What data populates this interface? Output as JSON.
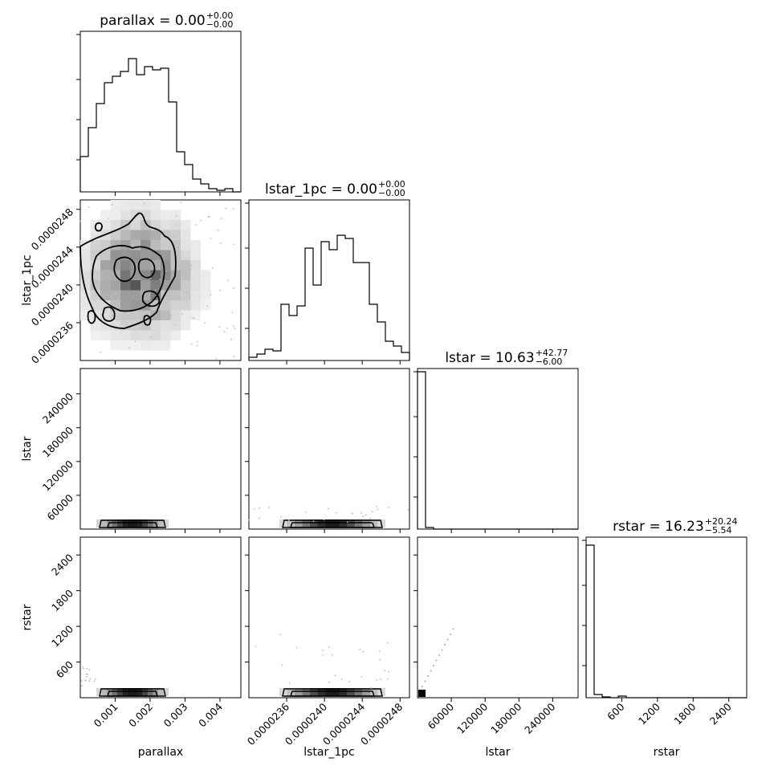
{
  "chart_data": {
    "type": "corner",
    "parameters": [
      "parallax",
      "lstar_1pc",
      "lstar",
      "rstar"
    ],
    "titles": [
      {
        "param": "parallax",
        "label": "parallax = 0.00",
        "plus": "+0.00",
        "minus": "−0.00"
      },
      {
        "param": "lstar_1pc",
        "label": "lstar_1pc = 0.00",
        "plus": "+0.00",
        "minus": "−0.00"
      },
      {
        "param": "lstar",
        "label": "lstar = 10.63",
        "plus": "+42.77",
        "minus": "−6.00"
      },
      {
        "param": "rstar",
        "label": "rstar = 16.23",
        "plus": "+20.24",
        "minus": "−5.54"
      }
    ],
    "axes": {
      "parallax": {
        "range": [
          0.0,
          0.0046
        ],
        "ticks": [
          0.001,
          0.002,
          0.003,
          0.004
        ],
        "tick_labels": [
          "0.001",
          "0.002",
          "0.003",
          "0.004"
        ]
      },
      "lstar_1pc": {
        "range": [
          2.32e-05,
          2.49e-05
        ],
        "ticks": [
          2.36e-05,
          2.4e-05,
          2.44e-05,
          2.48e-05
        ],
        "tick_labels": [
          "0.0000236",
          "0.0000240",
          "0.0000244",
          "0.0000248"
        ]
      },
      "lstar": {
        "range": [
          0,
          285000
        ],
        "ticks": [
          60000,
          120000,
          180000,
          240000
        ],
        "tick_labels": [
          "60000",
          "120000",
          "180000",
          "240000"
        ]
      },
      "rstar": {
        "range": [
          0,
          2700
        ],
        "ticks": [
          600,
          1200,
          1800,
          2400
        ],
        "tick_labels": [
          "600",
          "1200",
          "1800",
          "2400"
        ]
      }
    },
    "histograms": {
      "parallax": [
        0.22,
        0.4,
        0.55,
        0.68,
        0.72,
        0.75,
        0.83,
        0.73,
        0.78,
        0.76,
        0.77,
        0.56,
        0.25,
        0.17,
        0.08,
        0.05,
        0.02,
        0.01,
        0.02,
        0.0
      ],
      "lstar_1pc": [
        0.02,
        0.04,
        0.07,
        0.06,
        0.35,
        0.28,
        0.34,
        0.7,
        0.47,
        0.74,
        0.69,
        0.78,
        0.76,
        0.61,
        0.61,
        0.35,
        0.24,
        0.12,
        0.09,
        0.05
      ],
      "lstar": [
        0.98,
        0.01,
        0.0,
        0.0,
        0.0,
        0.0,
        0.0,
        0.0,
        0.0,
        0.0,
        0.0,
        0.0,
        0.0,
        0.0,
        0.0,
        0.0,
        0.0,
        0.0,
        0.0,
        0.0
      ],
      "rstar": [
        0.95,
        0.02,
        0.005,
        0.0,
        0.01,
        0.0,
        0.0,
        0.0,
        0.0,
        0.0,
        0.0,
        0.0,
        0.0,
        0.0,
        0.0,
        0.0,
        0.0,
        0.0,
        0.0,
        0.0
      ]
    },
    "layout": "lower-triangle 4x4",
    "grid": false
  }
}
